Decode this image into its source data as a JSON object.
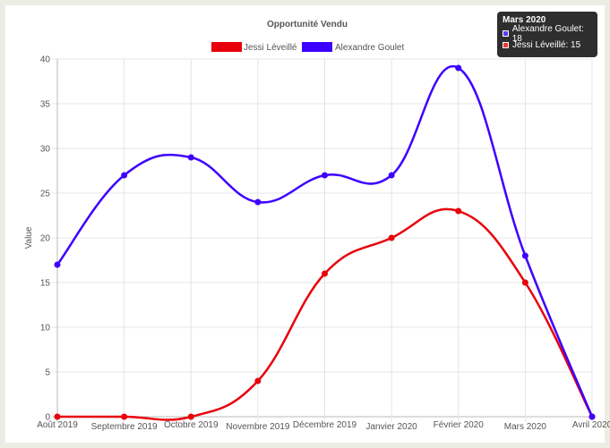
{
  "chart_data": {
    "type": "line",
    "title": "Opportunité Vendu",
    "xlabel": "",
    "ylabel": "Value",
    "categories": [
      "Août 2019",
      "Septembre 2019",
      "Octobre 2019",
      "Novembre 2019",
      "Décembre 2019",
      "Janvier 2020",
      "Février 2020",
      "Mars 2020",
      "Avril 2020"
    ],
    "ylim": [
      0,
      40
    ],
    "yticks": [
      0,
      5,
      10,
      15,
      20,
      25,
      30,
      35,
      40
    ],
    "grid": true,
    "legend_position": "top",
    "series": [
      {
        "name": "Jessi Léveillé",
        "color": "#e8000b",
        "values": [
          0,
          0,
          0,
          4,
          16,
          20,
          23,
          15,
          0
        ]
      },
      {
        "name": "Alexandre Goulet",
        "color": "#3d00ff",
        "values": [
          17,
          27,
          29,
          24,
          27,
          27,
          39,
          18,
          0
        ]
      }
    ]
  },
  "tooltip": {
    "title": "Mars 2020",
    "rows": [
      {
        "text": "Alexandre Goulet: 18",
        "color": "#5c3cff"
      },
      {
        "text": "Jessi Léveillé: 15",
        "color": "#f03a2e"
      }
    ]
  }
}
